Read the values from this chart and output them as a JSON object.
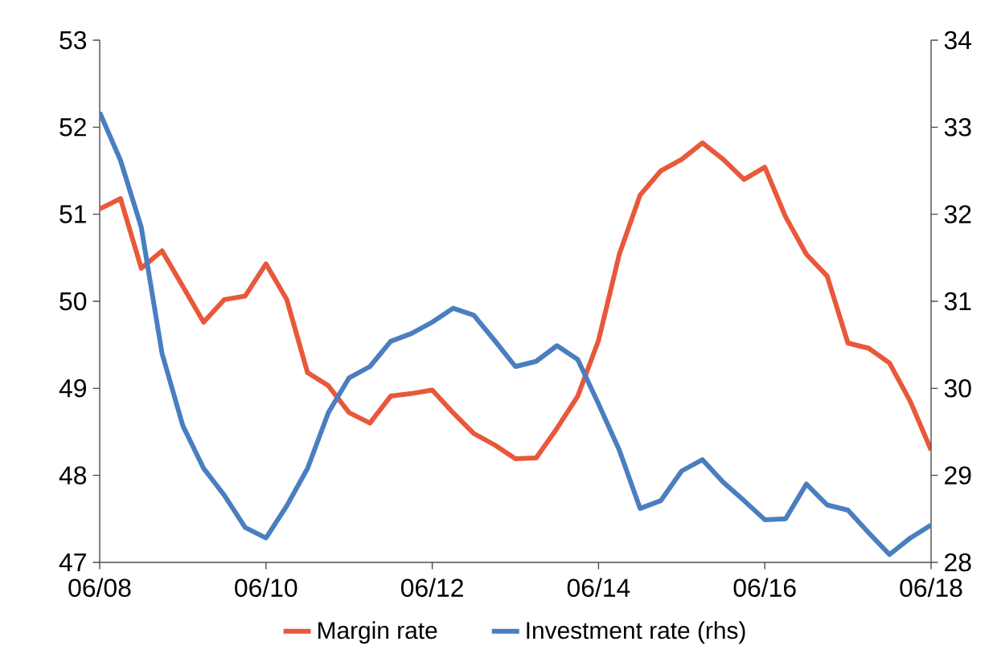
{
  "chart_data": {
    "type": "line",
    "x": [
      "2008-06",
      "2008-09",
      "2008-12",
      "2009-03",
      "2009-06",
      "2009-09",
      "2009-12",
      "2010-03",
      "2010-06",
      "2010-09",
      "2010-12",
      "2011-03",
      "2011-06",
      "2011-09",
      "2011-12",
      "2012-03",
      "2012-06",
      "2012-09",
      "2012-12",
      "2013-03",
      "2013-06",
      "2013-09",
      "2013-12",
      "2014-03",
      "2014-06",
      "2014-09",
      "2014-12",
      "2015-03",
      "2015-06",
      "2015-09",
      "2015-12",
      "2016-03",
      "2016-06",
      "2016-09",
      "2016-12",
      "2017-03",
      "2017-06",
      "2017-09",
      "2017-12",
      "2018-03",
      "2018-06"
    ],
    "series": [
      {
        "name": "Margin rate",
        "color": "#e8583a",
        "values": [
          51.06,
          51.18,
          50.38,
          50.58,
          50.17,
          49.76,
          50.02,
          50.06,
          50.43,
          50.02,
          49.18,
          49.03,
          48.72,
          48.6,
          48.91,
          48.94,
          48.98,
          48.72,
          48.48,
          48.35,
          48.19,
          48.2,
          48.54,
          48.91,
          49.55,
          50.54,
          51.22,
          51.5,
          51.63,
          51.82,
          51.63,
          51.4,
          51.54,
          50.97,
          50.54,
          50.29,
          49.52,
          49.46,
          49.29,
          48.85,
          48.29
        ]
      },
      {
        "name": "Investment rate (rhs)",
        "color": "#4a7ebf",
        "axis": "y2",
        "values": [
          33.17,
          32.62,
          31.85,
          30.4,
          29.57,
          29.08,
          28.77,
          28.4,
          28.28,
          28.65,
          29.08,
          29.72,
          30.12,
          30.25,
          30.54,
          30.63,
          30.76,
          30.92,
          30.84,
          30.55,
          30.25,
          30.31,
          30.49,
          30.33,
          29.82,
          29.29,
          28.62,
          28.71,
          29.05,
          29.18,
          28.92,
          28.71,
          28.49,
          28.5,
          28.9,
          28.66,
          28.6,
          28.34,
          28.09,
          28.28,
          28.43
        ]
      }
    ],
    "xlim": [
      "2008-06",
      "2018-06"
    ],
    "xticks": [
      {
        "value": "2008-06",
        "label": "06/08"
      },
      {
        "value": "2010-06",
        "label": "06/10"
      },
      {
        "value": "2012-06",
        "label": "06/12"
      },
      {
        "value": "2014-06",
        "label": "06/14"
      },
      {
        "value": "2016-06",
        "label": "06/16"
      },
      {
        "value": "2018-06",
        "label": "06/18"
      }
    ],
    "ylim": [
      47,
      53
    ],
    "yticks": [
      47,
      48,
      49,
      50,
      51,
      52,
      53
    ],
    "y2lim": [
      28,
      34
    ],
    "y2ticks": [
      28,
      29,
      30,
      31,
      32,
      33,
      34
    ],
    "legend": "bottom"
  }
}
